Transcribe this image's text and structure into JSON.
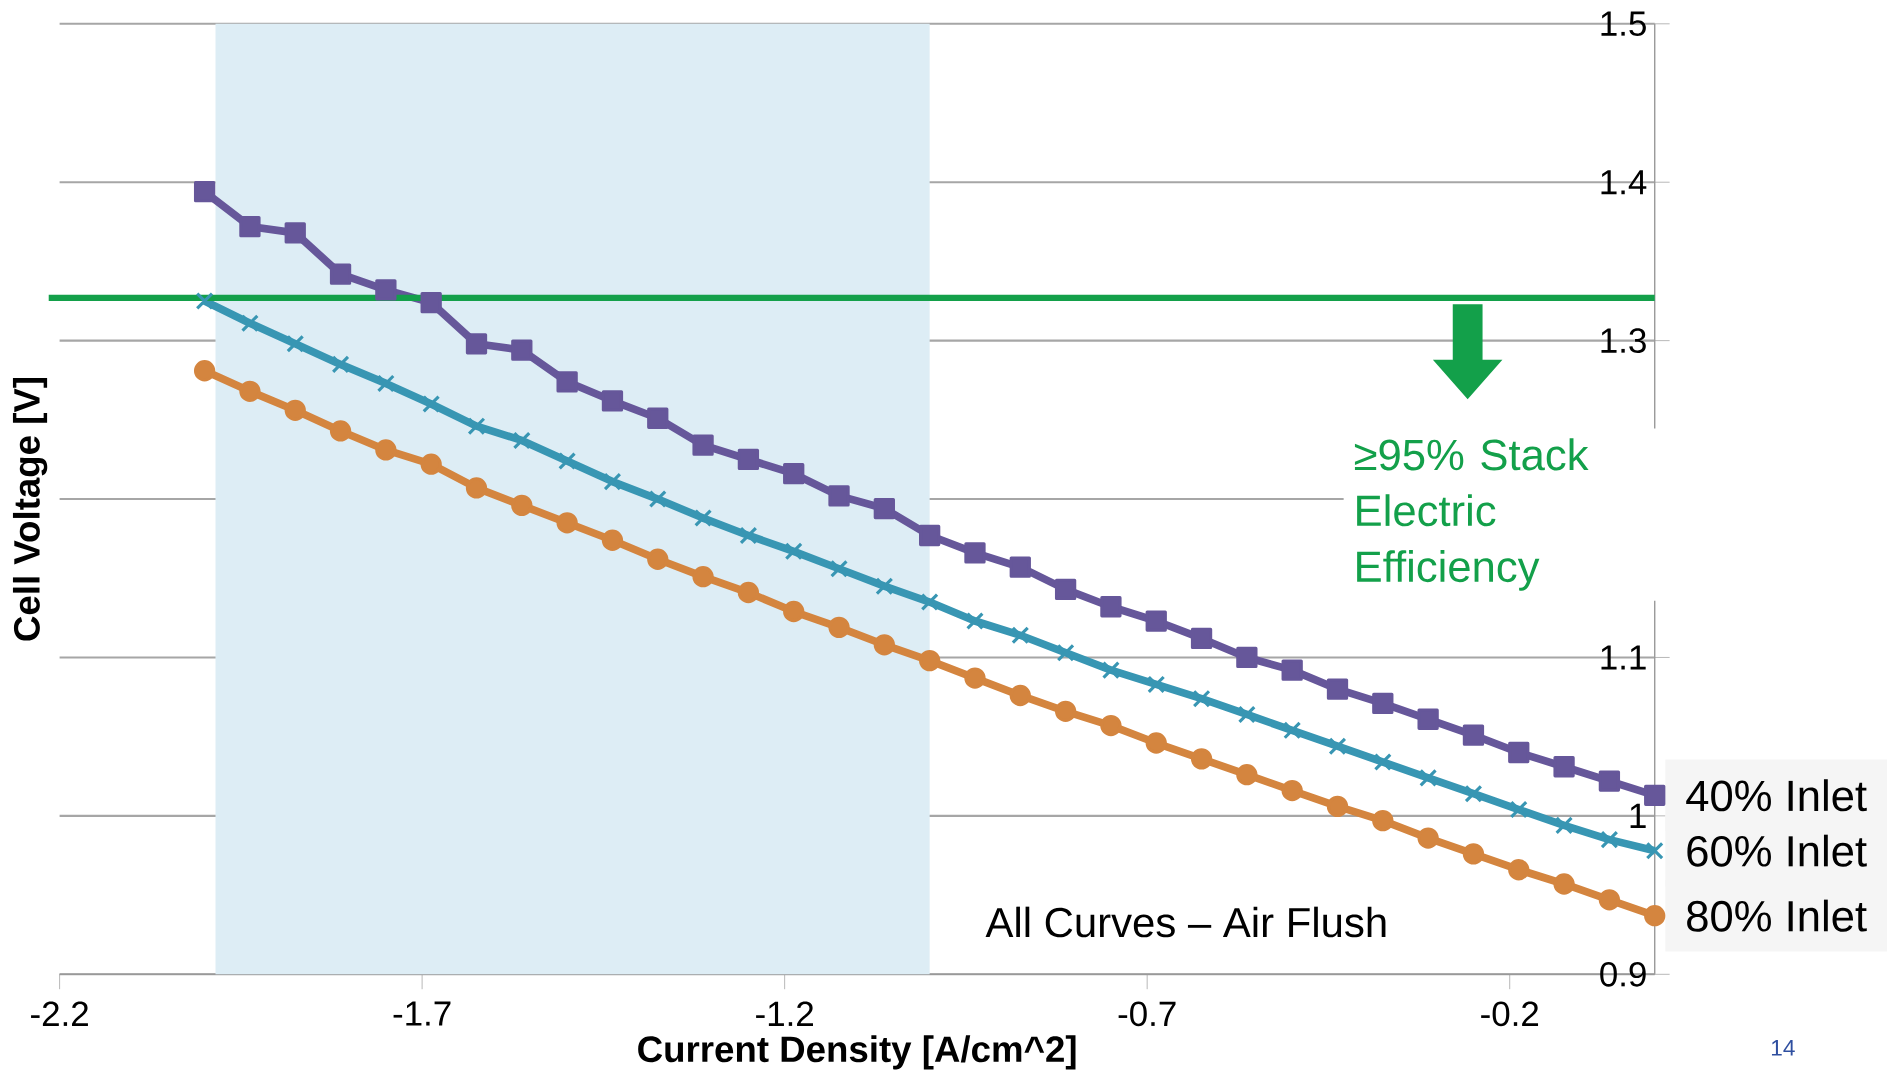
{
  "chart_data": {
    "type": "line",
    "xlabel": "Current Density [A/cm^2]",
    "ylabel": "Cell Voltage [V]",
    "x": [
      -2.0,
      -1.9375,
      -1.875,
      -1.8125,
      -1.75,
      -1.6875,
      -1.625,
      -1.5625,
      -1.5,
      -1.4375,
      -1.375,
      -1.3125,
      -1.25,
      -1.1875,
      -1.125,
      -1.0625,
      -1.0,
      -0.9375,
      -0.875,
      -0.8125,
      -0.75,
      -0.6875,
      -0.625,
      -0.5625,
      -0.5,
      -0.4375,
      -0.375,
      -0.3125,
      -0.25,
      -0.1875,
      -0.125,
      -0.0625,
      0.0
    ],
    "series": [
      {
        "name": "40% Inlet",
        "color": "#66579a",
        "marker": "square",
        "values": [
          1.394,
          1.372,
          1.368,
          1.342,
          1.332,
          1.324,
          1.298,
          1.294,
          1.274,
          1.262,
          1.251,
          1.234,
          1.225,
          1.216,
          1.202,
          1.194,
          1.177,
          1.166,
          1.157,
          1.143,
          1.132,
          1.123,
          1.112,
          1.1,
          1.092,
          1.08,
          1.071,
          1.061,
          1.051,
          1.04,
          1.031,
          1.022,
          1.013
        ]
      },
      {
        "name": "60% Inlet",
        "color": "#3896b3",
        "marker": "cross",
        "values": [
          1.325,
          1.311,
          1.298,
          1.285,
          1.273,
          1.26,
          1.246,
          1.237,
          1.224,
          1.211,
          1.2,
          1.188,
          1.177,
          1.167,
          1.156,
          1.145,
          1.135,
          1.123,
          1.114,
          1.103,
          1.092,
          1.083,
          1.074,
          1.064,
          1.054,
          1.044,
          1.034,
          1.024,
          1.014,
          1.004,
          0.994,
          0.985,
          0.978
        ]
      },
      {
        "name": "80% Inlet",
        "color": "#d4853f",
        "marker": "circle",
        "values": [
          1.281,
          1.268,
          1.256,
          1.243,
          1.231,
          1.222,
          1.207,
          1.196,
          1.185,
          1.174,
          1.162,
          1.151,
          1.141,
          1.129,
          1.119,
          1.108,
          1.098,
          1.087,
          1.076,
          1.066,
          1.057,
          1.046,
          1.036,
          1.026,
          1.016,
          1.006,
          0.997,
          0.986,
          0.976,
          0.966,
          0.957,
          0.947,
          0.937
        ]
      }
    ],
    "xlim": [
      -2.2,
      0.0
    ],
    "xticks": [
      -2.2,
      -1.7,
      -1.2,
      -0.7,
      -0.2
    ],
    "ylim": [
      0.9,
      1.5
    ],
    "yticks": [
      0.9,
      1,
      1.1,
      {
        "value": 1.2,
        "label": null
      },
      1.3,
      1.4,
      1.5
    ],
    "grid": "y",
    "ref_lines": [
      {
        "axis": "y",
        "value": 1.327,
        "color": "#13a04a"
      }
    ],
    "bands": [
      {
        "axis": "x",
        "from": -1.985,
        "to": -1.0,
        "color": "#ddedf5"
      }
    ],
    "annotations": [
      "≥95% Stack Electric Efficiency",
      "All Curves – Air Flush",
      "14"
    ]
  }
}
